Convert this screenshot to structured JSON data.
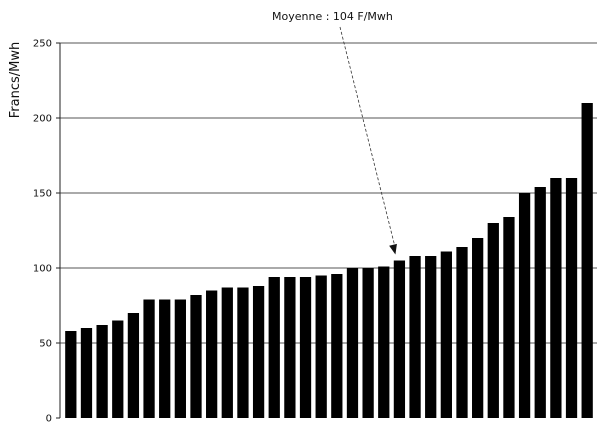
{
  "chart_data": {
    "type": "bar",
    "title": "",
    "xlabel": "",
    "ylabel": "Francs/Mwh",
    "ylim": [
      0,
      250
    ],
    "yticks": [
      0,
      50,
      100,
      150,
      200,
      250
    ],
    "grid": true,
    "bar_color": "#000000",
    "grid_color": "#555555",
    "values": [
      58,
      60,
      62,
      65,
      70,
      79,
      79,
      79,
      82,
      85,
      87,
      87,
      88,
      94,
      94,
      94,
      95,
      96,
      100,
      100,
      101,
      105,
      108,
      108,
      111,
      114,
      120,
      130,
      134,
      150,
      154,
      160,
      160,
      210
    ],
    "annotation": {
      "text": "Moyenne : 104 F/Mwh",
      "value": 104,
      "target_bar_index": 21
    }
  }
}
